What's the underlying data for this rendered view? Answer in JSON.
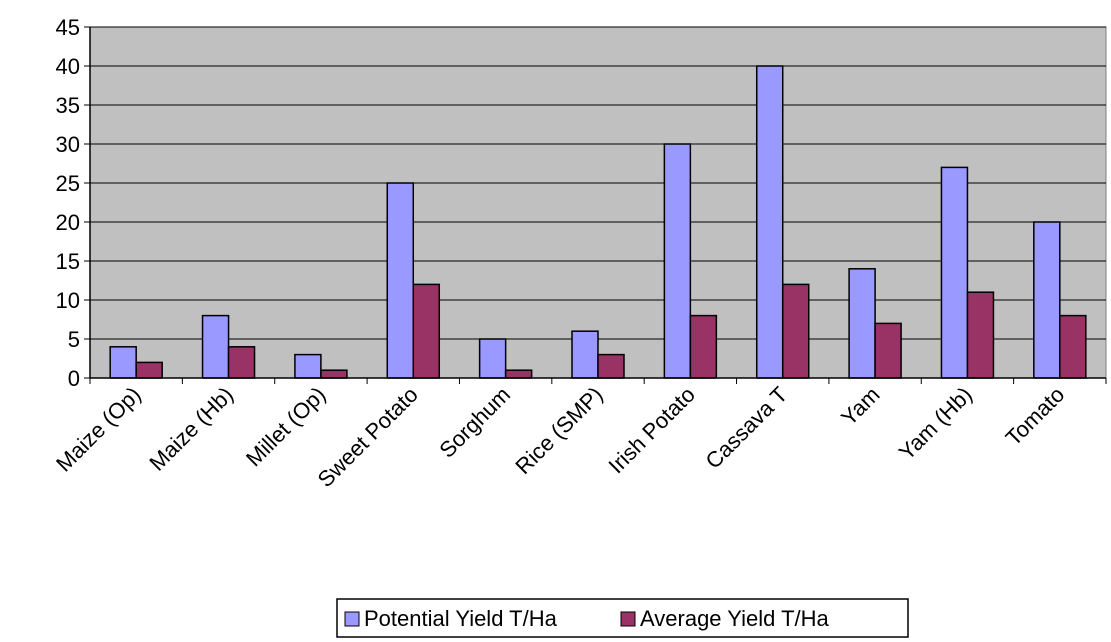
{
  "chart_data": {
    "type": "bar",
    "title": "",
    "xlabel": "",
    "ylabel": "",
    "categories": [
      "Maize (Op)",
      "Maize (Hb)",
      "Millet (Op)",
      "Sweet Potato",
      "Sorghum",
      "Rice (SMP)",
      "Irish Potato",
      "Cassava T",
      "Yam",
      "Yam (Hb)",
      "Tomato"
    ],
    "series": [
      {
        "name": "Potential Yield T/Ha",
        "color": "#9999ff",
        "values": [
          4,
          8,
          3,
          25,
          5,
          6,
          30,
          40,
          14,
          27,
          20
        ]
      },
      {
        "name": "Average Yield T/Ha",
        "color": "#993366",
        "values": [
          2,
          4,
          1,
          12,
          1,
          3,
          8,
          12,
          7,
          11,
          8
        ]
      }
    ],
    "ylim": [
      0,
      45
    ],
    "yticks": [
      0,
      5,
      10,
      15,
      20,
      25,
      30,
      35,
      40,
      45
    ],
    "grid": true,
    "plot_background": "#c0c0c0",
    "legend_position": "bottom"
  }
}
